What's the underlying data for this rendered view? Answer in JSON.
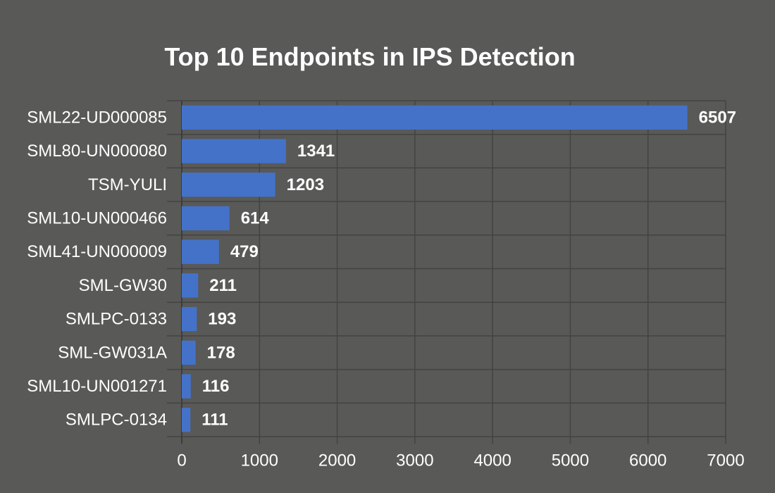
{
  "colors": {
    "background": "#595957",
    "bar": "#4472c9",
    "grid": "#434341",
    "text": "#ffffff"
  },
  "chart_data": {
    "type": "bar",
    "orientation": "horizontal",
    "title": "Top 10 Endpoints in IPS Detection",
    "xlabel": "",
    "ylabel": "",
    "categories": [
      "SML22-UD000085",
      "SML80-UN000080",
      "TSM-YULI",
      "SML10-UN000466",
      "SML41-UN000009",
      "SML-GW30",
      "SMLPC-0133",
      "SML-GW031A",
      "SML10-UN001271",
      "SMLPC-0134"
    ],
    "values": [
      6507,
      1341,
      1203,
      614,
      479,
      211,
      193,
      178,
      116,
      111
    ],
    "xlim": [
      0,
      7000
    ],
    "xticks": [
      0,
      1000,
      2000,
      3000,
      4000,
      5000,
      6000,
      7000
    ],
    "grid": true,
    "legend": "none",
    "data_labels": true
  }
}
